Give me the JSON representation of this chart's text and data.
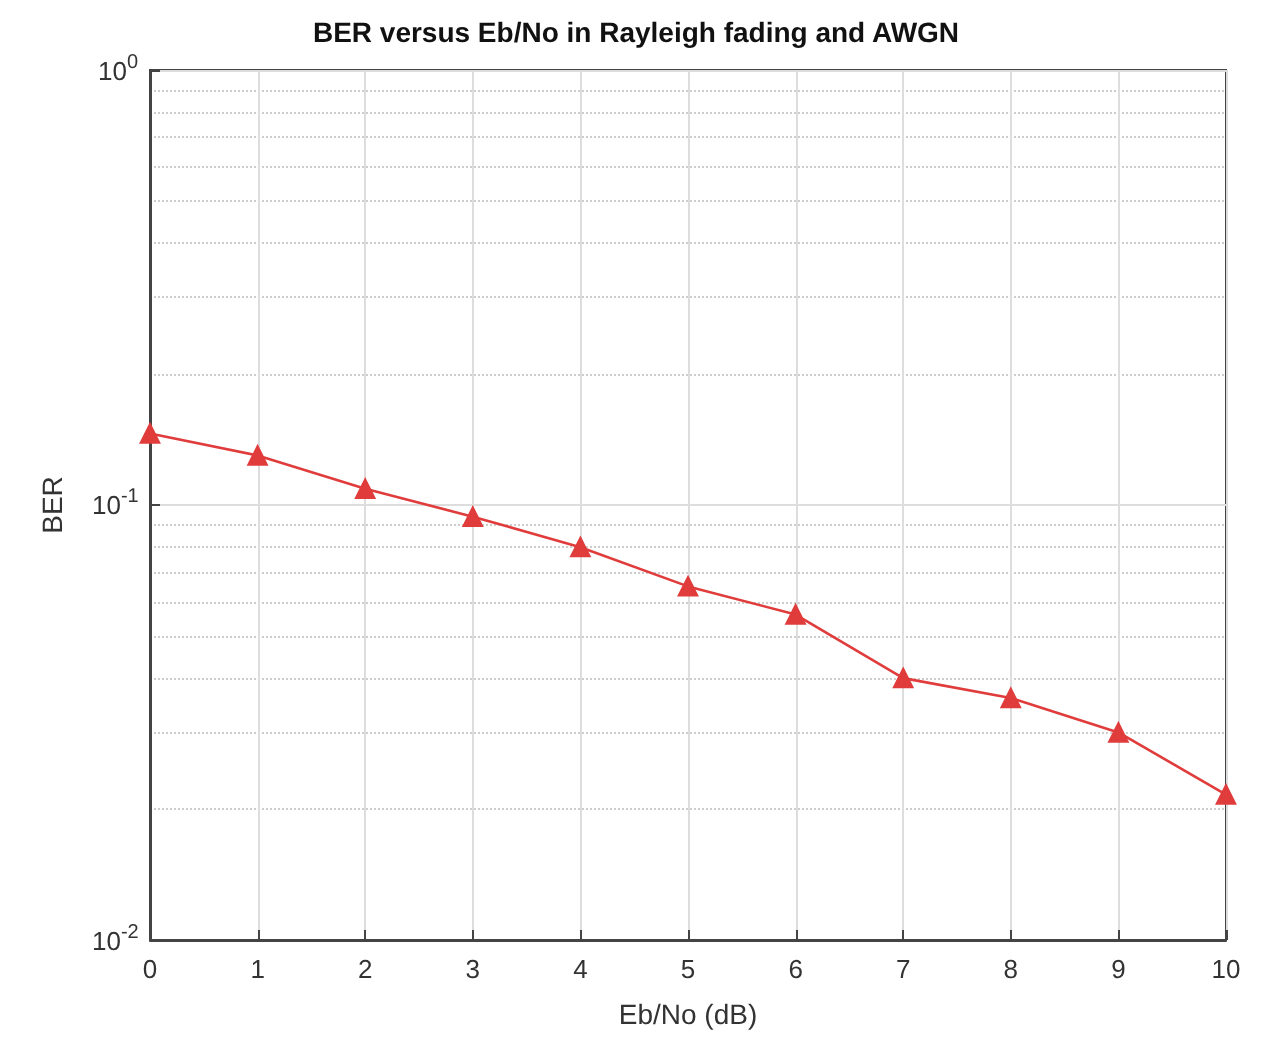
{
  "chart_data": {
    "type": "line",
    "title": "BER versus Eb/No in Rayleigh fading and AWGN",
    "xlabel": "Eb/No (dB)",
    "ylabel": "BER",
    "x": [
      0,
      1,
      2,
      3,
      4,
      5,
      6,
      7,
      8,
      9,
      10
    ],
    "series": [
      {
        "color": "#e03c3c",
        "values": [
          0.146,
          0.13,
          0.109,
          0.094,
          0.08,
          0.065,
          0.056,
          0.04,
          0.036,
          0.03,
          0.0216
        ]
      }
    ],
    "xlim": [
      0,
      10
    ],
    "xticks": [
      0,
      1,
      2,
      3,
      4,
      5,
      6,
      7,
      8,
      9,
      10
    ],
    "ylim": [
      0.01,
      1
    ],
    "yticks": [
      {
        "value": 0.01,
        "label": "10$^{-2}$"
      },
      {
        "value": 0.1,
        "label": "10$^{-1}$"
      },
      {
        "value": 1,
        "label": "10$^{0}$"
      }
    ],
    "log": "y",
    "grid": true,
    "marker": "triangle",
    "line_style": "solid"
  }
}
